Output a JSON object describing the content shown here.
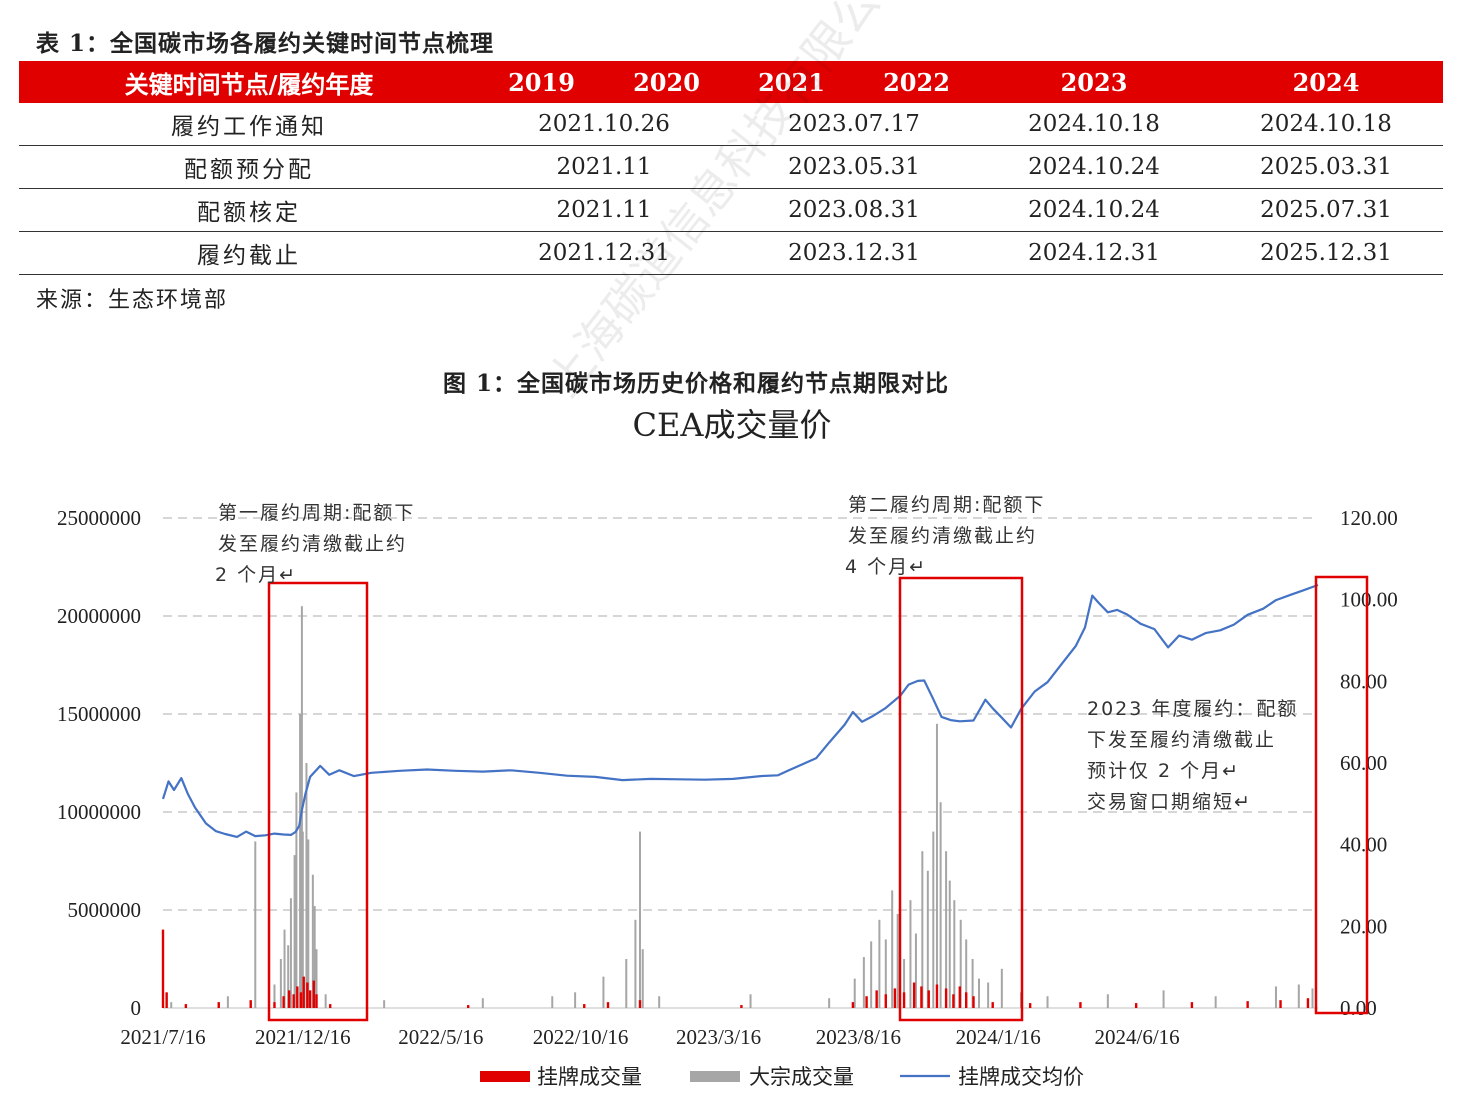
{
  "table": {
    "caption": "表 1：全国碳市场各履约关键时间节点梳理",
    "header": {
      "label": "关键时间节点/履约年度",
      "years": [
        [
          "2019",
          "2020"
        ],
        [
          "2021",
          "2022"
        ],
        [
          "2023"
        ],
        [
          "2024"
        ]
      ]
    },
    "rows": [
      {
        "label": "履约工作通知",
        "values": [
          "2021.10.26",
          "2023.07.17",
          "2024.10.18",
          "2024.10.18"
        ]
      },
      {
        "label": "配额预分配",
        "values": [
          "2021.11",
          "2023.05.31",
          "2024.10.24",
          "2025.03.31"
        ]
      },
      {
        "label": "配额核定",
        "values": [
          "2021.11",
          "2023.08.31",
          "2024.10.24",
          "2025.07.31"
        ]
      },
      {
        "label": "履约截止",
        "values": [
          "2021.12.31",
          "2023.12.31",
          "2024.12.31",
          "2025.12.31"
        ]
      }
    ],
    "source": "来源：生态环境部"
  },
  "figure": {
    "caption": "图 1：全国碳市场历史价格和履约节点期限对比",
    "watermark_text": "上海碳道信息科技有限公司",
    "annotations": [
      {
        "lines": [
          "第一履约周期:配额下",
          "发至履约清缴截止约",
          "2 个月↵"
        ]
      },
      {
        "lines": [
          "第二履约周期:配额下",
          "发至履约清缴截止约",
          "4 个月↵"
        ]
      },
      {
        "lines": [
          "2023  年度履约：配额",
          "下发至履约清缴截止",
          "预计仅 2 个月↵",
          "交易窗口期缩短↵"
        ]
      }
    ]
  },
  "chart_data": {
    "type": "bar+line",
    "title": "CEA成交量价",
    "x_tick_labels": [
      "2021/7/16",
      "2021/12/16",
      "2022/5/16",
      "2022/10/16",
      "2023/3/16",
      "2023/8/16",
      "2024/1/16",
      "2024/6/16"
    ],
    "x_range": [
      "2021-07-16",
      "2024-12-31"
    ],
    "y_left": {
      "ylim": [
        0,
        25000000
      ],
      "ticks": [
        "0",
        "5000000",
        "10000000",
        "15000000",
        "20000000",
        "25000000"
      ]
    },
    "y_right": {
      "ylim": [
        0,
        120
      ],
      "ticks": [
        "0.00",
        "20.00",
        "40.00",
        "60.00",
        "80.00",
        "100.00",
        "120.00"
      ]
    },
    "grid": "horizontal dashed",
    "legend_position": "bottom",
    "colors": {
      "listed_volume": "#e00000",
      "block_volume": "#a6a6a6",
      "price": "#4472c4",
      "highlight_box": "#e00000"
    },
    "series": [
      {
        "name": "挂牌成交量",
        "kind": "bar",
        "axis": "left",
        "points": [
          [
            "2021-07-16",
            4000000
          ],
          [
            "2021-07-20",
            800000
          ],
          [
            "2021-08-10",
            200000
          ],
          [
            "2021-09-15",
            300000
          ],
          [
            "2021-10-20",
            400000
          ],
          [
            "2021-11-15",
            300000
          ],
          [
            "2021-11-25",
            600000
          ],
          [
            "2021-12-01",
            900000
          ],
          [
            "2021-12-06",
            700000
          ],
          [
            "2021-12-10",
            1100000
          ],
          [
            "2021-12-14",
            800000
          ],
          [
            "2021-12-17",
            1600000
          ],
          [
            "2021-12-21",
            1300000
          ],
          [
            "2021-12-24",
            900000
          ],
          [
            "2021-12-28",
            1400000
          ],
          [
            "2021-12-31",
            700000
          ],
          [
            "2022-01-15",
            200000
          ],
          [
            "2022-06-15",
            150000
          ],
          [
            "2022-10-20",
            200000
          ],
          [
            "2022-11-15",
            300000
          ],
          [
            "2022-12-20",
            400000
          ],
          [
            "2023-04-10",
            150000
          ],
          [
            "2023-08-10",
            300000
          ],
          [
            "2023-08-25",
            600000
          ],
          [
            "2023-09-05",
            900000
          ],
          [
            "2023-09-15",
            700000
          ],
          [
            "2023-09-25",
            1000000
          ],
          [
            "2023-10-05",
            800000
          ],
          [
            "2023-10-16",
            1300000
          ],
          [
            "2023-10-24",
            1100000
          ],
          [
            "2023-11-01",
            900000
          ],
          [
            "2023-11-10",
            1200000
          ],
          [
            "2023-11-20",
            1000000
          ],
          [
            "2023-11-28",
            700000
          ],
          [
            "2023-12-05",
            1100000
          ],
          [
            "2023-12-12",
            800000
          ],
          [
            "2023-12-20",
            600000
          ],
          [
            "2024-01-10",
            300000
          ],
          [
            "2024-02-20",
            250000
          ],
          [
            "2024-04-15",
            300000
          ],
          [
            "2024-06-15",
            250000
          ],
          [
            "2024-08-15",
            300000
          ],
          [
            "2024-10-15",
            350000
          ],
          [
            "2024-11-20",
            400000
          ],
          [
            "2024-12-20",
            500000
          ]
        ]
      },
      {
        "name": "大宗成交量",
        "kind": "bar",
        "axis": "left",
        "points": [
          [
            "2021-07-25",
            300000
          ],
          [
            "2021-09-25",
            600000
          ],
          [
            "2021-10-25",
            8500000
          ],
          [
            "2021-11-15",
            1200000
          ],
          [
            "2021-11-22",
            2500000
          ],
          [
            "2021-11-26",
            4000000
          ],
          [
            "2021-11-30",
            3200000
          ],
          [
            "2021-12-03",
            5600000
          ],
          [
            "2021-12-07",
            7800000
          ],
          [
            "2021-12-09",
            11000000
          ],
          [
            "2021-12-13",
            15000000
          ],
          [
            "2021-12-15",
            20500000
          ],
          [
            "2021-12-16",
            9000000
          ],
          [
            "2021-12-20",
            12500000
          ],
          [
            "2021-12-22",
            8600000
          ],
          [
            "2021-12-27",
            6800000
          ],
          [
            "2021-12-29",
            5200000
          ],
          [
            "2021-12-31",
            3000000
          ],
          [
            "2022-01-10",
            700000
          ],
          [
            "2022-03-15",
            400000
          ],
          [
            "2022-07-01",
            500000
          ],
          [
            "2022-09-15",
            600000
          ],
          [
            "2022-10-10",
            800000
          ],
          [
            "2022-11-10",
            1600000
          ],
          [
            "2022-12-05",
            2500000
          ],
          [
            "2022-12-15",
            4500000
          ],
          [
            "2022-12-20",
            9000000
          ],
          [
            "2022-12-23",
            3000000
          ],
          [
            "2023-01-10",
            600000
          ],
          [
            "2023-04-20",
            700000
          ],
          [
            "2023-07-15",
            500000
          ],
          [
            "2023-08-12",
            1500000
          ],
          [
            "2023-08-22",
            2600000
          ],
          [
            "2023-08-30",
            3400000
          ],
          [
            "2023-09-08",
            4500000
          ],
          [
            "2023-09-15",
            3500000
          ],
          [
            "2023-09-22",
            6000000
          ],
          [
            "2023-09-28",
            4800000
          ],
          [
            "2023-10-05",
            2500000
          ],
          [
            "2023-10-12",
            5500000
          ],
          [
            "2023-10-18",
            3800000
          ],
          [
            "2023-10-25",
            8000000
          ],
          [
            "2023-10-31",
            7000000
          ],
          [
            "2023-11-06",
            9000000
          ],
          [
            "2023-11-10",
            14500000
          ],
          [
            "2023-11-14",
            10500000
          ],
          [
            "2023-11-20",
            8000000
          ],
          [
            "2023-11-24",
            6500000
          ],
          [
            "2023-11-29",
            5500000
          ],
          [
            "2023-12-06",
            4500000
          ],
          [
            "2023-12-12",
            3500000
          ],
          [
            "2023-12-19",
            2500000
          ],
          [
            "2023-12-26",
            1500000
          ],
          [
            "2024-01-05",
            1300000
          ],
          [
            "2024-01-20",
            2000000
          ],
          [
            "2024-02-10",
            800000
          ],
          [
            "2024-03-10",
            600000
          ],
          [
            "2024-05-15",
            700000
          ],
          [
            "2024-07-15",
            900000
          ],
          [
            "2024-09-10",
            600000
          ],
          [
            "2024-11-15",
            1100000
          ],
          [
            "2024-12-10",
            1200000
          ],
          [
            "2024-12-25",
            1000000
          ]
        ]
      },
      {
        "name": "挂牌成交均价",
        "kind": "line",
        "axis": "right",
        "points": [
          [
            "2021-07-16",
            51.2
          ],
          [
            "2021-07-22",
            55.5
          ],
          [
            "2021-07-28",
            53.4
          ],
          [
            "2021-08-05",
            56.3
          ],
          [
            "2021-08-12",
            52.5
          ],
          [
            "2021-08-20",
            49.1
          ],
          [
            "2021-09-01",
            45.2
          ],
          [
            "2021-09-12",
            43.3
          ],
          [
            "2021-09-22",
            42.6
          ],
          [
            "2021-10-05",
            41.9
          ],
          [
            "2021-10-15",
            43.2
          ],
          [
            "2021-10-25",
            42.1
          ],
          [
            "2021-11-05",
            42.3
          ],
          [
            "2021-11-15",
            42.7
          ],
          [
            "2021-11-25",
            42.5
          ],
          [
            "2021-12-03",
            42.4
          ],
          [
            "2021-12-08",
            43.1
          ],
          [
            "2021-12-12",
            44.6
          ],
          [
            "2021-12-15",
            48.5
          ],
          [
            "2021-12-19",
            52.5
          ],
          [
            "2021-12-24",
            56.6
          ],
          [
            "2022-01-04",
            59.3
          ],
          [
            "2022-01-14",
            57.1
          ],
          [
            "2022-01-25",
            58.2
          ],
          [
            "2022-02-10",
            56.8
          ],
          [
            "2022-03-01",
            57.6
          ],
          [
            "2022-04-01",
            58.1
          ],
          [
            "2022-05-01",
            58.4
          ],
          [
            "2022-06-01",
            58.1
          ],
          [
            "2022-07-01",
            57.9
          ],
          [
            "2022-08-01",
            58.2
          ],
          [
            "2022-09-01",
            57.6
          ],
          [
            "2022-10-01",
            56.9
          ],
          [
            "2022-11-01",
            56.6
          ],
          [
            "2022-12-01",
            55.8
          ],
          [
            "2023-01-01",
            56.1
          ],
          [
            "2023-02-01",
            56.0
          ],
          [
            "2023-03-01",
            55.9
          ],
          [
            "2023-04-01",
            56.1
          ],
          [
            "2023-05-01",
            56.8
          ],
          [
            "2023-05-20",
            57.0
          ],
          [
            "2023-06-01",
            58.2
          ],
          [
            "2023-06-15",
            59.6
          ],
          [
            "2023-07-01",
            61.2
          ],
          [
            "2023-07-15",
            65.0
          ],
          [
            "2023-08-01",
            69.4
          ],
          [
            "2023-08-10",
            72.5
          ],
          [
            "2023-08-20",
            70.1
          ],
          [
            "2023-09-01",
            71.5
          ],
          [
            "2023-09-15",
            73.5
          ],
          [
            "2023-10-01",
            76.5
          ],
          [
            "2023-10-10",
            79.2
          ],
          [
            "2023-10-20",
            80.1
          ],
          [
            "2023-10-27",
            80.2
          ],
          [
            "2023-11-05",
            76.1
          ],
          [
            "2023-11-15",
            71.3
          ],
          [
            "2023-11-25",
            70.5
          ],
          [
            "2023-12-05",
            70.2
          ],
          [
            "2023-12-20",
            70.4
          ],
          [
            "2024-01-02",
            75.5
          ],
          [
            "2024-01-10",
            73.4
          ],
          [
            "2024-01-20",
            71.1
          ],
          [
            "2024-01-30",
            68.7
          ],
          [
            "2024-02-10",
            73.2
          ],
          [
            "2024-02-25",
            77.5
          ],
          [
            "2024-03-10",
            79.8
          ],
          [
            "2024-03-25",
            84.1
          ],
          [
            "2024-04-10",
            88.7
          ],
          [
            "2024-04-20",
            93.2
          ],
          [
            "2024-04-28",
            101.0
          ],
          [
            "2024-05-05",
            99.2
          ],
          [
            "2024-05-15",
            96.9
          ],
          [
            "2024-05-25",
            97.5
          ],
          [
            "2024-06-05",
            96.4
          ],
          [
            "2024-06-20",
            94.1
          ],
          [
            "2024-07-05",
            92.8
          ],
          [
            "2024-07-20",
            88.3
          ],
          [
            "2024-08-01",
            91.2
          ],
          [
            "2024-08-15",
            90.2
          ],
          [
            "2024-08-30",
            91.8
          ],
          [
            "2024-09-15",
            92.5
          ],
          [
            "2024-09-30",
            93.9
          ],
          [
            "2024-10-15",
            96.3
          ],
          [
            "2024-11-01",
            97.8
          ],
          [
            "2024-11-15",
            99.9
          ],
          [
            "2024-12-01",
            101.2
          ],
          [
            "2024-12-15",
            102.3
          ],
          [
            "2024-12-31",
            103.6
          ]
        ]
      }
    ],
    "highlight_boxes": [
      {
        "start": "2021-11-15",
        "end": "2022-01-05"
      },
      {
        "start": "2023-08-01",
        "end": "2024-01-05"
      },
      {
        "start": "2024-12-10",
        "end": "2024-12-31"
      }
    ]
  }
}
